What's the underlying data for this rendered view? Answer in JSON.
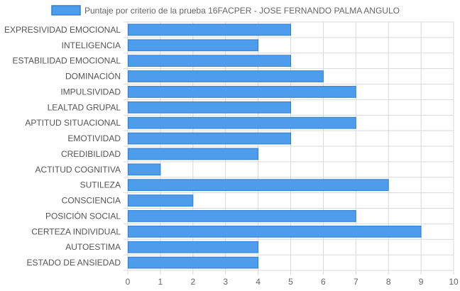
{
  "chart_data": {
    "type": "bar",
    "orientation": "horizontal",
    "categories": [
      "EXPRESIVIDAD EMOCIONAL",
      "INTELIGENCIA",
      "ESTABILIDAD EMOCIONAL",
      "DOMINACIÓN",
      "IMPULSIVIDAD",
      "LEALTAD GRUPAL",
      "APTITUD SITUACIONAL",
      "EMOTIVIDAD",
      "CREDIBILIDAD",
      "ACTITUD COGNITIVA",
      "SUTILEZA",
      "CONSCIENCIA",
      "POSICIÓN SOCIAL",
      "CERTEZA INDIVIDUAL",
      "AUTOESTIMA",
      "ESTADO DE ANSIEDAD"
    ],
    "series": [
      {
        "name": "Puntaje por criterio de la prueba 16FACPER - JOSE FERNANDO PALMA ANGULO",
        "values": [
          5,
          4,
          5,
          6,
          7,
          5,
          7,
          5,
          4,
          1,
          8,
          2,
          7,
          9,
          4,
          4
        ]
      }
    ],
    "xlim": [
      0,
      10
    ],
    "xticks": [
      "0",
      "1",
      "2",
      "3",
      "4",
      "5",
      "6",
      "7",
      "8",
      "9",
      "10"
    ],
    "grid": true,
    "legend_position": "top",
    "colors": {
      "bar_fill": "#4e9cec",
      "bar_stroke": "#2f7fd8",
      "grid": "#d9d9d9"
    }
  }
}
